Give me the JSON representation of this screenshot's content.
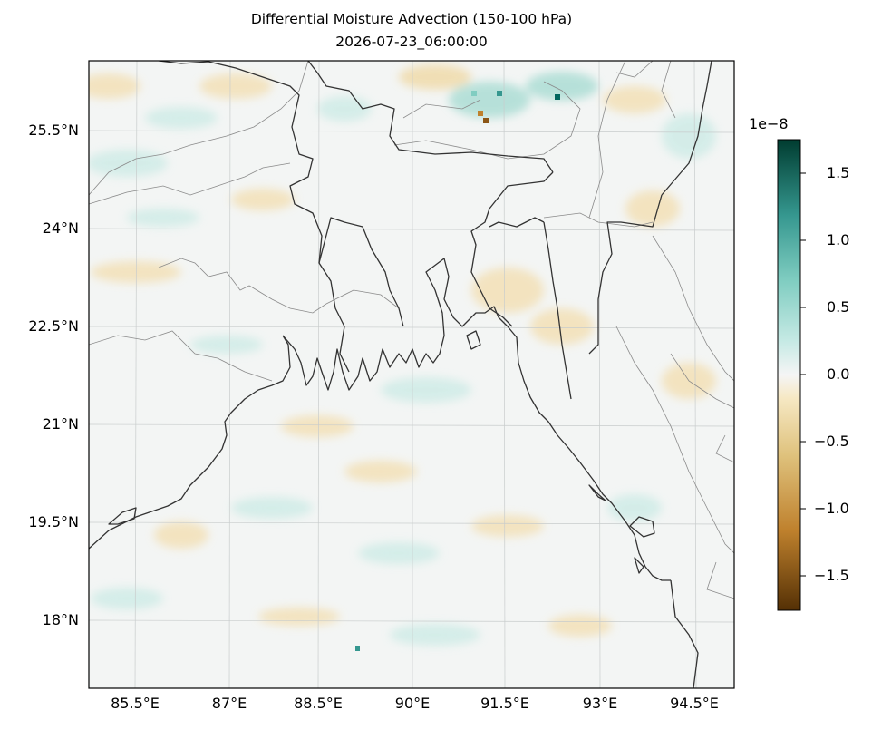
{
  "title": {
    "line1": "Differential Moisture Advection (150-100 hPa)",
    "line2": "2026-07-23_06:00:00"
  },
  "map": {
    "lon_labels": [
      {
        "lon": 85.5,
        "label": "85.5°E"
      },
      {
        "lon": 87.0,
        "label": "87°E"
      },
      {
        "lon": 88.5,
        "label": "88.5°E"
      },
      {
        "lon": 90.0,
        "label": "90°E"
      },
      {
        "lon": 91.5,
        "label": "91.5°E"
      },
      {
        "lon": 93.0,
        "label": "93°E"
      },
      {
        "lon": 94.5,
        "label": "94.5°E"
      }
    ],
    "lat_labels": [
      {
        "lat": 25.5,
        "label": "25.5°N"
      },
      {
        "lat": 24.0,
        "label": "24°N"
      },
      {
        "lat": 22.5,
        "label": "22.5°N"
      },
      {
        "lat": 21.0,
        "label": "21°N"
      },
      {
        "lat": 19.5,
        "label": "19.5°N"
      },
      {
        "lat": 18.0,
        "label": "18°N"
      }
    ],
    "gridlines": true
  },
  "colorbar": {
    "exponent_label": "1e−8",
    "range": [
      -1.75,
      1.75
    ],
    "ticks": [
      {
        "value": 1.5,
        "label": "1.5"
      },
      {
        "value": 1.0,
        "label": "1.0"
      },
      {
        "value": 0.5,
        "label": "0.5"
      },
      {
        "value": 0.0,
        "label": "0.0"
      },
      {
        "value": -0.5,
        "label": "−0.5"
      },
      {
        "value": -1.0,
        "label": "−1.0"
      },
      {
        "value": -1.5,
        "label": "−1.5"
      }
    ],
    "colors": {
      "max": "#003c30",
      "high": "#35978f",
      "mid_high": "#c7eae5",
      "zero": "#f5f5f5",
      "mid_low": "#f6e8c3",
      "low": "#bf812d",
      "min": "#543005"
    }
  }
}
